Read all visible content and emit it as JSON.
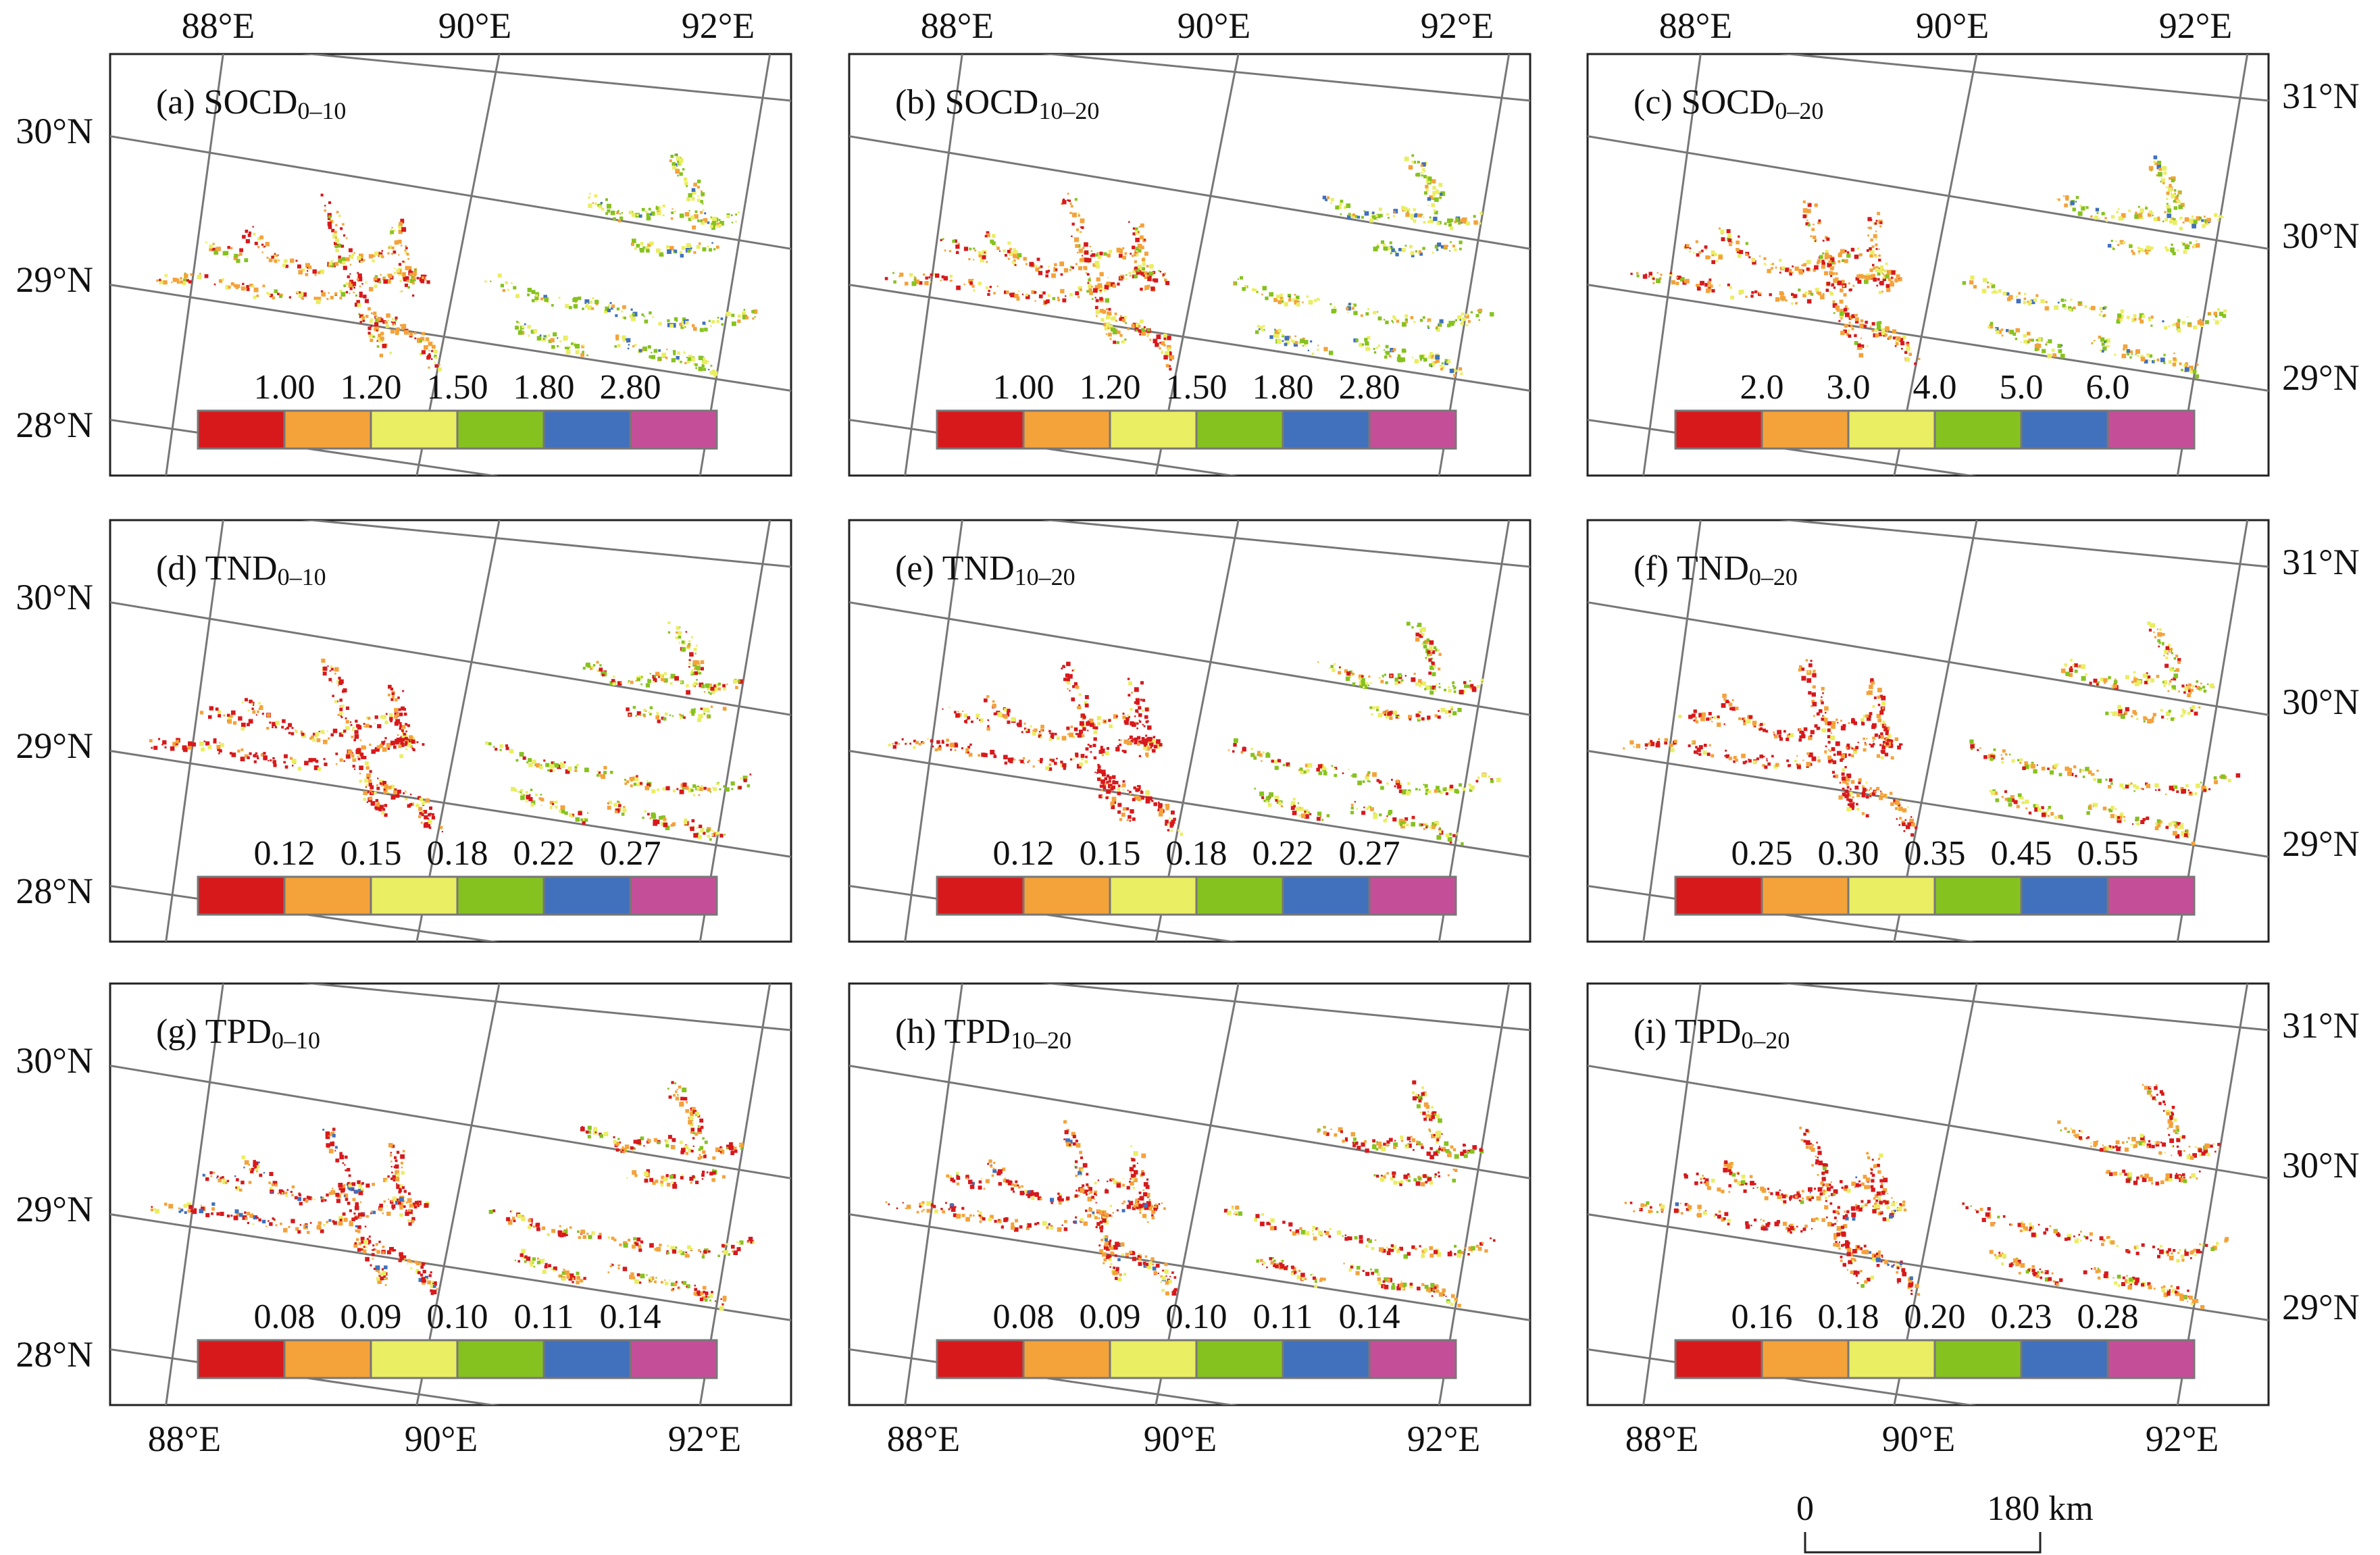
{
  "figure": {
    "top_lon_labels": [
      "88°E",
      "90°E",
      "92°E"
    ],
    "bottom_lon_labels": [
      "88°E",
      "90°E",
      "92°E"
    ],
    "left_lat_labels": [
      "30°N",
      "29°N",
      "28°N"
    ],
    "right_lat_labels": [
      "31°N",
      "30°N",
      "29°N"
    ],
    "panels": [
      {
        "id": "a",
        "prefix": "(a) SOCD",
        "sub": "0–10",
        "breaks": [
          "1.00",
          "1.20",
          "1.50",
          "1.80",
          "2.80"
        ]
      },
      {
        "id": "b",
        "prefix": "(b) SOCD",
        "sub": "10–20",
        "breaks": [
          "1.00",
          "1.20",
          "1.50",
          "1.80",
          "2.80"
        ]
      },
      {
        "id": "c",
        "prefix": "(c) SOCD",
        "sub": "0–20",
        "breaks": [
          "2.0",
          "3.0",
          "4.0",
          "5.0",
          "6.0"
        ]
      },
      {
        "id": "d",
        "prefix": "(d) TND",
        "sub": "0–10",
        "breaks": [
          "0.12",
          "0.15",
          "0.18",
          "0.22",
          "0.27"
        ]
      },
      {
        "id": "e",
        "prefix": "(e) TND",
        "sub": "10–20",
        "breaks": [
          "0.12",
          "0.15",
          "0.18",
          "0.22",
          "0.27"
        ]
      },
      {
        "id": "f",
        "prefix": "(f) TND",
        "sub": "0–20",
        "breaks": [
          "0.25",
          "0.30",
          "0.35",
          "0.45",
          "0.55"
        ]
      },
      {
        "id": "g",
        "prefix": "(g) TPD",
        "sub": "0–10",
        "breaks": [
          "0.08",
          "0.09",
          "0.10",
          "0.11",
          "0.14"
        ]
      },
      {
        "id": "h",
        "prefix": "(h) TPD",
        "sub": "10–20",
        "breaks": [
          "0.08",
          "0.09",
          "0.10",
          "0.11",
          "0.14"
        ]
      },
      {
        "id": "i",
        "prefix": "(i) TPD",
        "sub": "0–20",
        "breaks": [
          "0.16",
          "0.18",
          "0.20",
          "0.23",
          "0.28"
        ]
      }
    ],
    "legend_colors": [
      "#d7191c",
      "#f4a23a",
      "#eaee62",
      "#86c21f",
      "#4170bd",
      "#c44f98"
    ],
    "scale_bar": {
      "start": "0",
      "end": "180 km"
    }
  }
}
